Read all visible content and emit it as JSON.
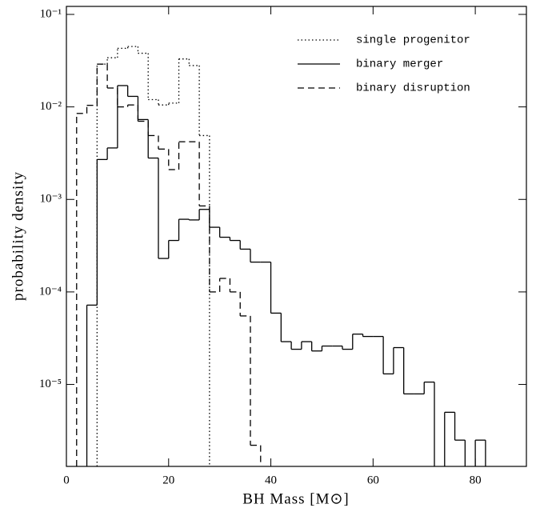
{
  "chart_data": {
    "type": "histogram",
    "xlabel": "BH Mass [M⊙]",
    "ylabel": "probability density",
    "xlim": [
      0,
      90
    ],
    "xticks": [
      0,
      20,
      40,
      60,
      80
    ],
    "ylim": [
      1.3e-06,
      0.122
    ],
    "log_y": true,
    "yticks": [
      {
        "value": 0.1,
        "label": "10⁻¹"
      },
      {
        "value": 0.01,
        "label": "10⁻²"
      },
      {
        "value": 0.001,
        "label": "10⁻³"
      },
      {
        "value": 0.0001,
        "label": "10⁻⁴"
      },
      {
        "value": 1e-05,
        "label": "10⁻⁵"
      }
    ],
    "legend": "upper right",
    "bins": [
      0,
      2,
      4,
      6,
      8,
      10,
      12,
      14,
      16,
      18,
      20,
      22,
      24,
      26,
      28,
      30,
      32,
      34,
      36,
      38,
      40,
      42,
      44,
      46,
      48,
      50,
      52,
      54,
      56,
      58,
      60,
      62,
      64,
      66,
      68,
      70,
      72,
      74,
      76,
      78,
      80,
      82
    ],
    "series": [
      {
        "name": "single progenitor",
        "color": "#000000",
        "style": "dotted",
        "values": [
          null,
          null,
          null,
          0.029,
          0.034,
          0.043,
          0.045,
          0.038,
          0.012,
          0.0105,
          0.011,
          0.033,
          0.028,
          0.0049,
          null,
          null,
          null,
          null,
          null,
          null,
          null,
          null,
          null,
          null,
          null,
          null,
          null,
          null,
          null,
          null,
          null,
          null,
          null,
          null,
          null,
          null,
          null,
          null,
          null,
          null,
          null
        ]
      },
      {
        "name": "binary merger",
        "color": "#000000",
        "style": "solid",
        "values": [
          null,
          null,
          7.2e-05,
          0.0027,
          0.0036,
          0.017,
          0.013,
          0.0073,
          0.0028,
          0.00023,
          0.00036,
          0.00061,
          0.0006,
          0.00078,
          0.0005,
          0.00039,
          0.00036,
          0.00029,
          0.00021,
          0.00021,
          5.9e-05,
          2.9e-05,
          2.4e-05,
          2.9e-05,
          2.3e-05,
          2.6e-05,
          2.6e-05,
          2.4e-05,
          3.5e-05,
          3.3e-05,
          3.3e-05,
          1.3e-05,
          2.5e-05,
          7.9e-06,
          7.9e-06,
          1.06e-05,
          null,
          5e-06,
          2.5e-06,
          null,
          2.5e-06
        ]
      },
      {
        "name": "binary disruption",
        "color": "#000000",
        "style": "dashed",
        "values": [
          null,
          0.0085,
          0.0104,
          0.029,
          0.016,
          0.01,
          0.0105,
          0.007,
          0.0049,
          0.0035,
          0.0021,
          0.0042,
          0.0042,
          0.00085,
          0.0001,
          0.00014,
          0.0001,
          5.5e-05,
          2.2e-06,
          null,
          null,
          null,
          null,
          null,
          null,
          null,
          null,
          null,
          null,
          null,
          null,
          null,
          null,
          null,
          null,
          null,
          null,
          null,
          null,
          null,
          null
        ]
      }
    ]
  }
}
